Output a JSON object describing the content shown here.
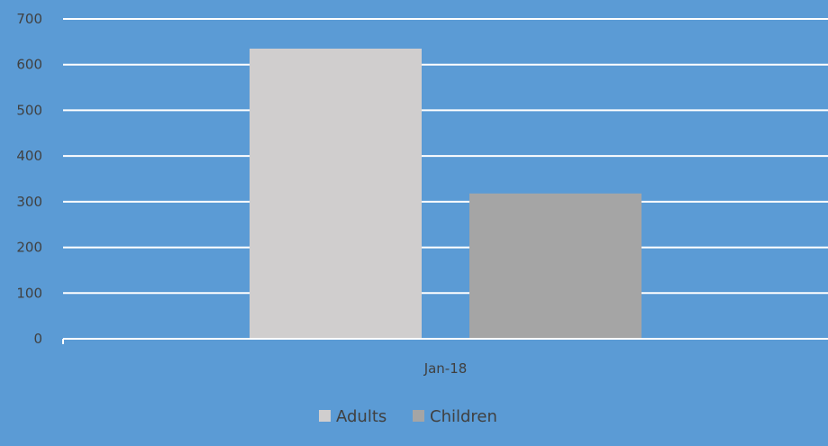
{
  "chart_data": {
    "type": "bar",
    "categories": [
      "Jan-18"
    ],
    "series": [
      {
        "name": "Adults",
        "values": [
          635
        ],
        "color": "#d0cece"
      },
      {
        "name": "Children",
        "values": [
          318
        ],
        "color": "#a5a5a5"
      }
    ],
    "ylim": [
      0,
      700
    ],
    "yticks": [
      0,
      100,
      200,
      300,
      400,
      500,
      600,
      700
    ],
    "ytick_labels": [
      "0",
      "100",
      "200",
      "300",
      "400",
      "500",
      "600",
      "700"
    ],
    "grid": true,
    "legend_position": "bottom",
    "background_color": "#5b9bd5",
    "gridline_color": "#ffffff",
    "text_color": "#404040"
  }
}
